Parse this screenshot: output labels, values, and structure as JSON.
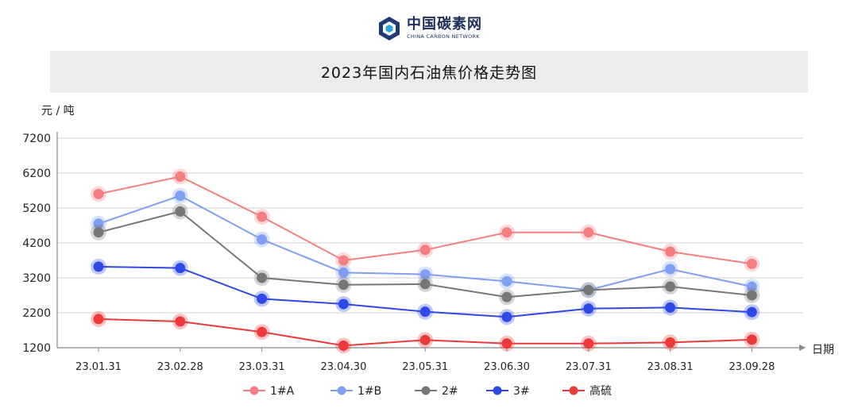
{
  "header": {
    "logo_cn": "中国碳素网",
    "logo_en": "CHINA CARBON NETWORK",
    "logo_icon": "hexagon-logo-icon"
  },
  "chart_data": {
    "type": "line",
    "title": "2023年国内石油焦价格走势图",
    "ylabel": "元 / 吨",
    "xlabel": "日期",
    "categories": [
      "23.01.31",
      "23.02.28",
      "23.03.31",
      "23.04.30",
      "23.05.31",
      "23.06.30",
      "23.07.31",
      "23.08.31",
      "23.09.28"
    ],
    "ylim": [
      1200,
      7200
    ],
    "yticks": [
      1200,
      2200,
      3200,
      4200,
      5200,
      6200,
      7200
    ],
    "grid": true,
    "legend_position": "bottom",
    "series": [
      {
        "name": "1#A",
        "color": "#f47e80",
        "values": [
          5600,
          6100,
          4950,
          3700,
          4000,
          4500,
          4500,
          3950,
          3600
        ]
      },
      {
        "name": "1#B",
        "color": "#7f9ff2",
        "values": [
          4750,
          5550,
          4300,
          3350,
          3300,
          3100,
          2850,
          3450,
          2950
        ]
      },
      {
        "name": "2#",
        "color": "#777777",
        "values": [
          4500,
          5100,
          3200,
          3000,
          3020,
          2650,
          2850,
          2950,
          2700
        ]
      },
      {
        "name": "3#",
        "color": "#2f49e6",
        "values": [
          3520,
          3480,
          2600,
          2450,
          2230,
          2080,
          2320,
          2350,
          2220
        ]
      },
      {
        "name": "高硫",
        "color": "#ec3a3a",
        "values": [
          2020,
          1950,
          1650,
          1260,
          1420,
          1320,
          1320,
          1350,
          1430
        ]
      }
    ]
  }
}
